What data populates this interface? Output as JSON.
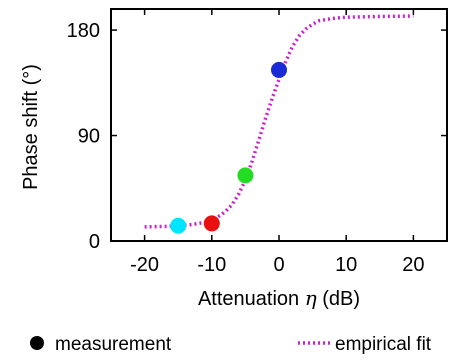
{
  "chart_data": {
    "type": "scatter",
    "xlabel_main": "Attenuation ",
    "xlabel_symbol": "η",
    "xlabel_unit": " (dB)",
    "ylabel": "Phase shift (°)",
    "xlim": [
      -25,
      25
    ],
    "ylim": [
      0,
      198
    ],
    "x_ticks": [
      -20,
      -10,
      0,
      10,
      20
    ],
    "x_tick_labels": [
      "-20",
      "-10",
      "0",
      "10",
      "20"
    ],
    "y_ticks": [
      0,
      90,
      180
    ],
    "y_tick_labels": [
      "0",
      "90",
      "180"
    ],
    "grid": false,
    "legend_position": "bottom",
    "series": [
      {
        "name": "measurement",
        "kind": "scatter",
        "points": [
          {
            "x": -15,
            "y": 13,
            "color": "#00e5ff"
          },
          {
            "x": -10,
            "y": 15,
            "color": "#e81010"
          },
          {
            "x": -5,
            "y": 56,
            "color": "#22dd22"
          },
          {
            "x": 0,
            "y": 146,
            "color": "#1a2ad6"
          }
        ]
      },
      {
        "name": "empirical fit",
        "kind": "line",
        "style": "dotted",
        "color": "#cc22cc",
        "x": [
          -20,
          -17,
          -15,
          -13,
          -11,
          -10,
          -9,
          -8,
          -7,
          -6,
          -5,
          -4,
          -3,
          -2,
          -1,
          0,
          1,
          2,
          3,
          4,
          5,
          6,
          8,
          10,
          14,
          20
        ],
        "y": [
          12,
          12.5,
          13,
          14,
          16,
          18,
          21,
          25,
          31,
          40,
          52,
          68,
          86,
          105,
          122,
          138,
          153,
          166,
          175,
          181,
          185,
          188,
          190,
          191,
          191.5,
          192
        ]
      }
    ]
  },
  "legend": {
    "measurement_label": "measurement",
    "fit_label": "empirical fit"
  }
}
